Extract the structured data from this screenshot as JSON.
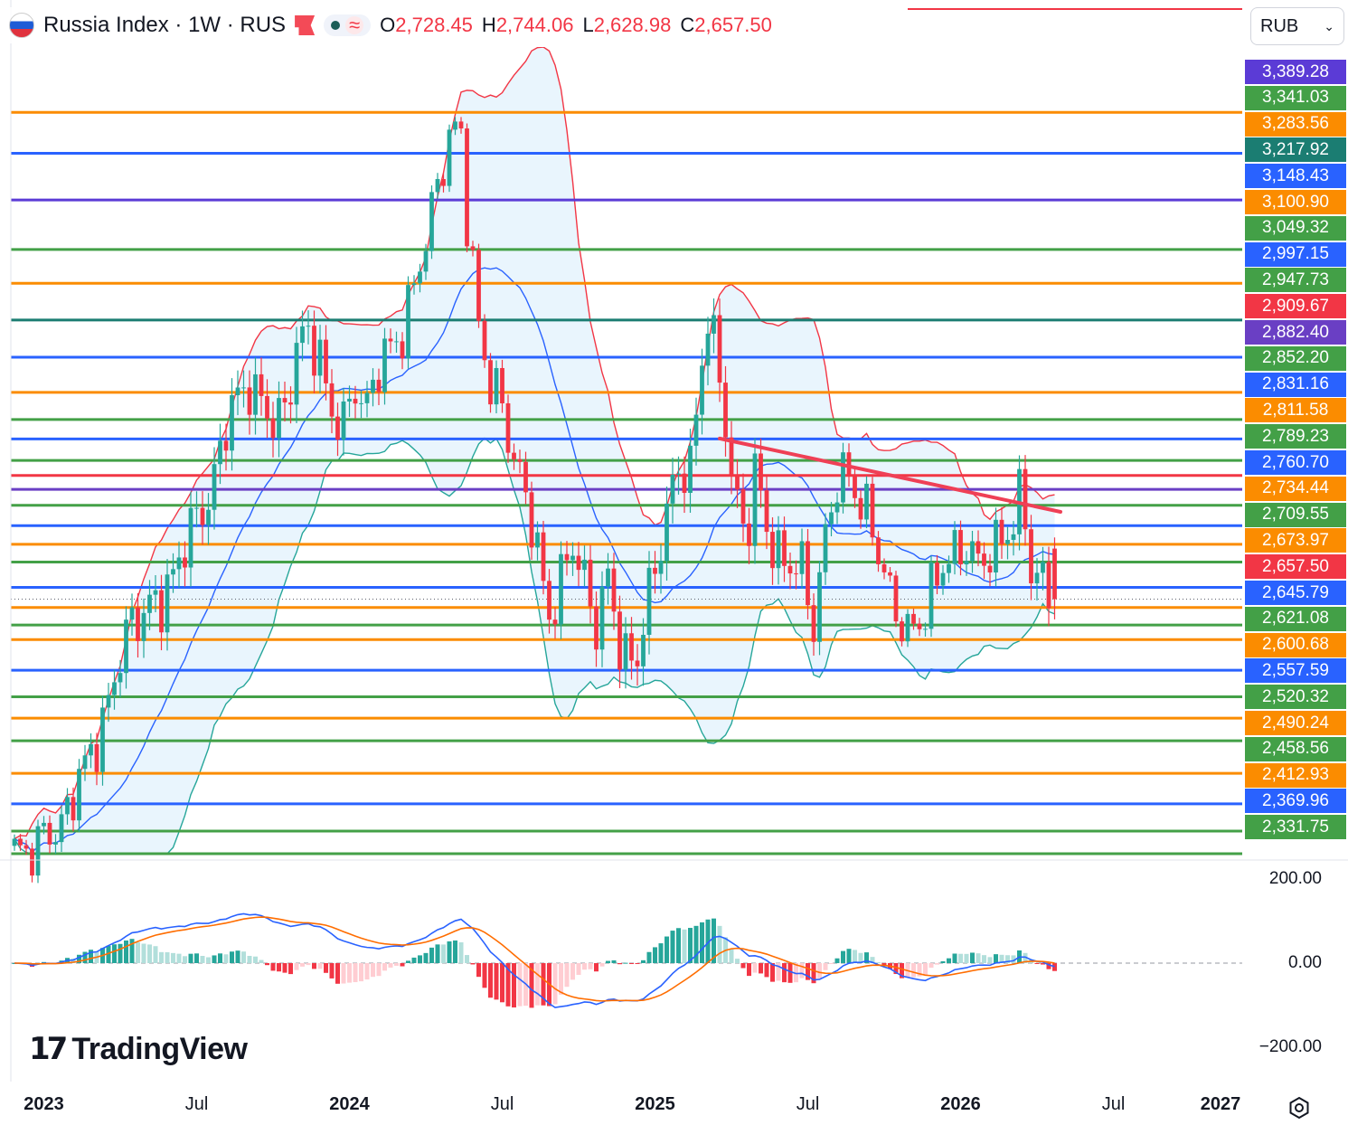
{
  "header": {
    "title": "Russia Index · 1W · RUS",
    "open_label": "O",
    "open": "2,728.45",
    "high_label": "H",
    "high": "2,744.06",
    "low_label": "L",
    "low": "2,628.98",
    "close_label": "C",
    "close": "2,657.50"
  },
  "currency": {
    "value": "RUB"
  },
  "icons": {
    "flag": "russia-flag-icon",
    "marker": "flag-marker-icon",
    "status": "live-dot-icon",
    "wave": "approx-wave-icon",
    "settings": "gear-icon",
    "chevron": "chevron-down-icon"
  },
  "colors": {
    "up": "#26a69a",
    "down": "#f23645",
    "band_upper": "#f23645",
    "band_lower": "#26a69a",
    "band_mid": "#2962ff",
    "band_fill": "#e3f2fd",
    "trendline": "#ef4056",
    "macd": "#2962ff",
    "signal": "#ff6d00"
  },
  "price_axis_labels": [
    {
      "text": "3,389.28",
      "color": "#5b3bd6"
    },
    {
      "text": "3,341.03",
      "color": "#43a047"
    },
    {
      "text": "3,283.56",
      "color": "#fb8c00"
    },
    {
      "text": "3,217.92",
      "color": "#1b7d72"
    },
    {
      "text": "3,148.43",
      "color": "#2962ff"
    },
    {
      "text": "3,100.90",
      "color": "#fb8c00"
    },
    {
      "text": "3,049.32",
      "color": "#43a047"
    },
    {
      "text": "2,997.15",
      "color": "#2962ff"
    },
    {
      "text": "2,947.73",
      "color": "#43a047"
    },
    {
      "text": "2,909.67",
      "color": "#f23645"
    },
    {
      "text": "2,882.40",
      "color": "#6a3fc4"
    },
    {
      "text": "2,852.20",
      "color": "#43a047"
    },
    {
      "text": "2,831.16",
      "color": "#2962ff"
    },
    {
      "text": "2,811.58",
      "color": "#fb8c00"
    },
    {
      "text": "2,789.23",
      "color": "#43a047"
    },
    {
      "text": "2,760.70",
      "color": "#2962ff"
    },
    {
      "text": "2,734.44",
      "color": "#fb8c00"
    },
    {
      "text": "2,709.55",
      "color": "#43a047"
    },
    {
      "text": "2,673.97",
      "color": "#fb8c00"
    },
    {
      "text": "2,657.50",
      "color": "#f23645"
    },
    {
      "text": "2,645.79",
      "color": "#2962ff"
    },
    {
      "text": "2,621.08",
      "color": "#43a047"
    },
    {
      "text": "2,600.68",
      "color": "#fb8c00"
    },
    {
      "text": "2,557.59",
      "color": "#2962ff"
    },
    {
      "text": "2,520.32",
      "color": "#43a047"
    },
    {
      "text": "2,490.24",
      "color": "#fb8c00"
    },
    {
      "text": "2,458.56",
      "color": "#43a047"
    },
    {
      "text": "2,412.93",
      "color": "#fb8c00"
    },
    {
      "text": "2,369.96",
      "color": "#2962ff"
    },
    {
      "text": "2,331.75",
      "color": "#43a047"
    }
  ],
  "macd_axis_labels": [
    "200.00",
    "0.00",
    "−200.00"
  ],
  "time_axis_labels": [
    {
      "text": "2023",
      "year": true
    },
    {
      "text": "Jul",
      "year": false
    },
    {
      "text": "2024",
      "year": true
    },
    {
      "text": "Jul",
      "year": false
    },
    {
      "text": "2025",
      "year": true
    },
    {
      "text": "Jul",
      "year": false
    },
    {
      "text": "2026",
      "year": true
    },
    {
      "text": "Jul",
      "year": false
    },
    {
      "text": "2027",
      "year": true
    }
  ],
  "logo": {
    "mark": "17",
    "text": "TradingView"
  },
  "chart_data": {
    "type": "candlestick",
    "symbol": "Russia Index",
    "timeframe": "1W",
    "price_range": [
      2300,
      3420
    ],
    "last_close": 2657.5,
    "horizontal_levels": [
      {
        "value": 3341.03,
        "color": "#fb8c00"
      },
      {
        "value": 3283.56,
        "color": "#2962ff"
      },
      {
        "value": 3217.92,
        "color": "#5b3bd6"
      },
      {
        "value": 3148.43,
        "color": "#43a047"
      },
      {
        "value": 3100.9,
        "color": "#fb8c00"
      },
      {
        "value": 3049.32,
        "color": "#1b7d72"
      },
      {
        "value": 2997.15,
        "color": "#2962ff"
      },
      {
        "value": 2947.73,
        "color": "#fb8c00"
      },
      {
        "value": 2909.67,
        "color": "#43a047"
      },
      {
        "value": 2882.4,
        "color": "#2962ff"
      },
      {
        "value": 2852.2,
        "color": "#43a047"
      },
      {
        "value": 2831.16,
        "color": "#f23645"
      },
      {
        "value": 2811.58,
        "color": "#6a3fc4"
      },
      {
        "value": 2789.23,
        "color": "#43a047"
      },
      {
        "value": 2760.7,
        "color": "#2962ff"
      },
      {
        "value": 2734.44,
        "color": "#fb8c00"
      },
      {
        "value": 2709.55,
        "color": "#43a047"
      },
      {
        "value": 2673.97,
        "color": "#2962ff"
      },
      {
        "value": 2645.79,
        "color": "#fb8c00"
      },
      {
        "value": 2621.08,
        "color": "#43a047"
      },
      {
        "value": 2600.68,
        "color": "#fb8c00"
      },
      {
        "value": 2557.59,
        "color": "#2962ff"
      },
      {
        "value": 2520.32,
        "color": "#43a047"
      },
      {
        "value": 2490.24,
        "color": "#fb8c00"
      },
      {
        "value": 2458.56,
        "color": "#43a047"
      },
      {
        "value": 2412.93,
        "color": "#fb8c00"
      },
      {
        "value": 2369.96,
        "color": "#2962ff"
      },
      {
        "value": 2331.75,
        "color": "#43a047"
      },
      {
        "value": 2300.0,
        "color": "#43a047"
      }
    ],
    "trendline": {
      "from": {
        "week": 120,
        "price": 2883
      },
      "to": {
        "week": 178,
        "price": 2780
      }
    },
    "weeks_start": "2022-11-28",
    "weeks_end": "2027-01-04",
    "time_ticks": [
      {
        "label": "2023",
        "week": 5
      },
      {
        "label": "Jul",
        "week": 31
      },
      {
        "label": "2024",
        "week": 57
      },
      {
        "label": "Jul",
        "week": 83
      },
      {
        "label": "2025",
        "week": 109
      },
      {
        "label": "Jul",
        "week": 135
      },
      {
        "label": "2026",
        "week": 161
      },
      {
        "label": "Jul",
        "week": 187
      },
      {
        "label": "2027",
        "week": 213
      }
    ],
    "close_anchors": [
      [
        0,
        2305
      ],
      [
        4,
        2310
      ],
      [
        8,
        2345
      ],
      [
        12,
        2420
      ],
      [
        16,
        2510
      ],
      [
        20,
        2635
      ],
      [
        22,
        2640
      ],
      [
        25,
        2650
      ],
      [
        28,
        2720
      ],
      [
        30,
        2750
      ],
      [
        33,
        2800
      ],
      [
        36,
        2900
      ],
      [
        38,
        2940
      ],
      [
        40,
        2965
      ],
      [
        42,
        2930
      ],
      [
        44,
        2900
      ],
      [
        46,
        2930
      ],
      [
        48,
        3010
      ],
      [
        50,
        3025
      ],
      [
        52,
        3000
      ],
      [
        54,
        2920
      ],
      [
        56,
        2895
      ],
      [
        58,
        2960
      ],
      [
        60,
        2930
      ],
      [
        62,
        2980
      ],
      [
        64,
        3010
      ],
      [
        66,
        3040
      ],
      [
        68,
        3090
      ],
      [
        70,
        3160
      ],
      [
        72,
        3250
      ],
      [
        74,
        3300
      ],
      [
        76,
        3310
      ],
      [
        77,
        3195
      ],
      [
        79,
        3050
      ],
      [
        81,
        2950
      ],
      [
        83,
        2930
      ],
      [
        85,
        2860
      ],
      [
        87,
        2800
      ],
      [
        89,
        2720
      ],
      [
        91,
        2640
      ],
      [
        93,
        2680
      ],
      [
        95,
        2730
      ],
      [
        97,
        2690
      ],
      [
        99,
        2620
      ],
      [
        101,
        2680
      ],
      [
        103,
        2600
      ],
      [
        104,
        2580
      ],
      [
        106,
        2570
      ],
      [
        107,
        2620
      ],
      [
        109,
        2700
      ],
      [
        111,
        2790
      ],
      [
        113,
        2830
      ],
      [
        115,
        2840
      ],
      [
        116,
        2920
      ],
      [
        117,
        3000
      ],
      [
        118,
        3060
      ],
      [
        120,
        2960
      ],
      [
        122,
        2840
      ],
      [
        123,
        2790
      ],
      [
        125,
        2760
      ],
      [
        126,
        2830
      ],
      [
        128,
        2760
      ],
      [
        130,
        2720
      ],
      [
        132,
        2700
      ],
      [
        134,
        2700
      ],
      [
        136,
        2630
      ],
      [
        138,
        2740
      ],
      [
        140,
        2820
      ],
      [
        142,
        2840
      ],
      [
        144,
        2790
      ],
      [
        146,
        2750
      ],
      [
        148,
        2700
      ],
      [
        150,
        2640
      ],
      [
        152,
        2600
      ],
      [
        154,
        2630
      ],
      [
        156,
        2670
      ],
      [
        158,
        2700
      ],
      [
        160,
        2720
      ],
      [
        162,
        2740
      ],
      [
        164,
        2700
      ],
      [
        166,
        2720
      ],
      [
        168,
        2750
      ],
      [
        170,
        2760
      ],
      [
        171,
        2790
      ],
      [
        172,
        2770
      ],
      [
        173,
        2700
      ],
      [
        175,
        2690
      ],
      [
        176,
        2660
      ],
      [
        177,
        2657
      ]
    ],
    "bollinger_period": 20,
    "macd": {
      "ylim": [
        -250,
        250
      ],
      "ticks": [
        200,
        0,
        -200
      ]
    }
  }
}
